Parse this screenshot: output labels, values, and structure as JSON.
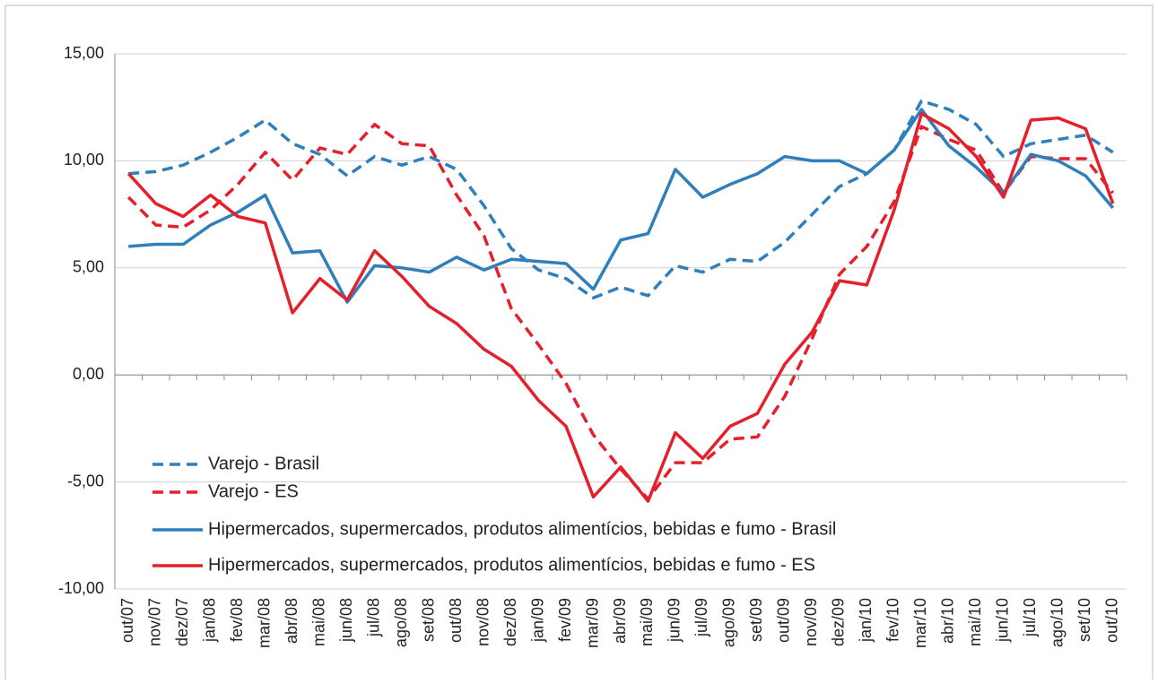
{
  "chart_data": {
    "type": "line",
    "categories": [
      "out/07",
      "nov/07",
      "dez/07",
      "jan/08",
      "fev/08",
      "mar/08",
      "abr/08",
      "mai/08",
      "jun/08",
      "jul/08",
      "ago/08",
      "set/08",
      "out/08",
      "nov/08",
      "dez/08",
      "jan/09",
      "fev/09",
      "mar/09",
      "abr/09",
      "mai/09",
      "jun/09",
      "jul/09",
      "ago/09",
      "set/09",
      "out/09",
      "nov/09",
      "dez/09",
      "jan/10",
      "fev/10",
      "mar/10",
      "abr/10",
      "mai/10",
      "jun/10",
      "jul/10",
      "ago/10",
      "set/10",
      "out/10"
    ],
    "series": [
      {
        "name": "Varejo - Brasil",
        "color": "#2f7fbd",
        "dashed": true,
        "values": [
          9.4,
          9.5,
          9.8,
          10.4,
          11.1,
          11.9,
          10.8,
          10.3,
          9.3,
          10.2,
          9.8,
          10.2,
          9.6,
          7.9,
          5.9,
          4.9,
          4.5,
          3.6,
          4.1,
          3.7,
          5.1,
          4.8,
          5.4,
          5.3,
          6.2,
          7.5,
          8.8,
          9.4,
          10.5,
          12.8,
          12.4,
          11.7,
          10.2,
          10.8,
          11.0,
          11.2,
          10.4
        ]
      },
      {
        "name": "Varejo - ES",
        "color": "#e3202b",
        "dashed": true,
        "values": [
          8.3,
          7.0,
          6.9,
          7.7,
          8.9,
          10.4,
          9.1,
          10.6,
          10.3,
          11.7,
          10.8,
          10.7,
          8.4,
          6.5,
          3.1,
          1.4,
          -0.4,
          -2.8,
          -4.4,
          -5.8,
          -4.1,
          -4.1,
          -3.0,
          -2.9,
          -1.0,
          1.7,
          4.7,
          6.0,
          8.1,
          11.6,
          11.0,
          10.5,
          8.5,
          10.2,
          10.1,
          10.1,
          8.5
        ]
      },
      {
        "name": "Hipermercados, supermercados, produtos alimentícios, bebidas e fumo - Brasil",
        "color": "#2f7fbd",
        "dashed": false,
        "values": [
          6.0,
          6.1,
          6.1,
          7.0,
          7.6,
          8.4,
          5.7,
          5.8,
          3.4,
          5.1,
          5.0,
          4.8,
          5.5,
          4.9,
          5.4,
          5.3,
          5.2,
          4.0,
          6.3,
          6.6,
          9.6,
          8.3,
          8.9,
          9.4,
          10.2,
          10.0,
          10.0,
          9.4,
          10.5,
          12.4,
          10.7,
          9.7,
          8.5,
          10.3,
          10.0,
          9.3,
          7.8
        ]
      },
      {
        "name": "Hipermercados, supermercados, produtos alimentícios, bebidas e fumo - ES",
        "color": "#e3202b",
        "dashed": false,
        "values": [
          9.4,
          8.0,
          7.4,
          8.4,
          7.4,
          7.1,
          2.9,
          4.5,
          3.5,
          5.8,
          4.6,
          3.2,
          2.4,
          1.2,
          0.4,
          -1.2,
          -2.4,
          -5.7,
          -4.3,
          -5.9,
          -2.7,
          -3.9,
          -2.4,
          -1.8,
          0.5,
          2.0,
          4.4,
          4.2,
          7.7,
          12.2,
          11.5,
          10.2,
          8.3,
          11.9,
          12.0,
          11.5,
          8.0
        ]
      }
    ],
    "ylim": [
      -10,
      15
    ],
    "yticks": [
      {
        "value": -10,
        "label": "-10,00"
      },
      {
        "value": -5,
        "label": "-5,00"
      },
      {
        "value": 0,
        "label": "0,00"
      },
      {
        "value": 5,
        "label": "5,00"
      },
      {
        "value": 10,
        "label": "10,00"
      },
      {
        "value": 15,
        "label": "15,00"
      }
    ],
    "grid": true
  }
}
